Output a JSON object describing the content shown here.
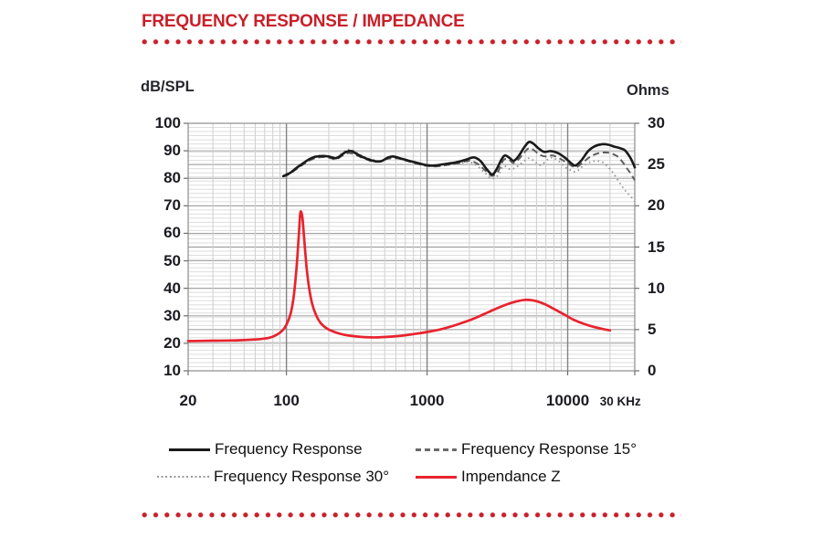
{
  "header": {
    "title": "FREQUENCY RESPONSE / IMPEDANCE"
  },
  "colors": {
    "accent_red": "#c9202a",
    "impedance_red": "#e8232e",
    "curve_black": "#1a1a1a",
    "grid_gray": "#8c8c8c"
  },
  "legend": {
    "items": [
      {
        "label": "Frequency Response",
        "style": "solid-black"
      },
      {
        "label": "Frequency Response 15°",
        "style": "dashed-gray"
      },
      {
        "label": "Frequency Response 30°",
        "style": "dotted-gray"
      },
      {
        "label": "Impendance Z",
        "style": "solid-red"
      }
    ]
  },
  "chart_data": {
    "type": "line",
    "title": "FREQUENCY RESPONSE / IMPEDANCE",
    "x_axis": {
      "scale": "log",
      "min": 20,
      "max": 30000,
      "tick_values": [
        20,
        100,
        1000,
        10000,
        30000
      ],
      "tick_labels": [
        "20",
        "100",
        "1000",
        "10000",
        "30 KHz"
      ]
    },
    "y_left": {
      "label": "dB/SPL",
      "min": 10,
      "max": 100,
      "ticks": [
        100,
        90,
        80,
        70,
        60,
        50,
        40,
        30,
        20,
        10
      ]
    },
    "y_right": {
      "label": "Ohms",
      "min": 0,
      "max": 30,
      "ticks": [
        30,
        25,
        20,
        15,
        10,
        5,
        0
      ]
    },
    "grid": {
      "h_minor_step_ohms": 0.5,
      "h_major_step_ohms": 5,
      "h_db_step": 10,
      "log_minors": true
    },
    "series": [
      {
        "name": "Frequency Response 30°",
        "axis": "left",
        "style": "dotted-gray",
        "points": [
          [
            95,
            80.9
          ],
          [
            105,
            82.0
          ],
          [
            118,
            83.9
          ],
          [
            130,
            85.5
          ],
          [
            145,
            87.1
          ],
          [
            160,
            88.0
          ],
          [
            180,
            88.3
          ],
          [
            200,
            88.1
          ],
          [
            225,
            87.6
          ],
          [
            250,
            89.3
          ],
          [
            270,
            90.4
          ],
          [
            300,
            90.1
          ],
          [
            340,
            88.3
          ],
          [
            400,
            87.0
          ],
          [
            470,
            86.4
          ],
          [
            540,
            87.8
          ],
          [
            620,
            87.4
          ],
          [
            780,
            86.0
          ],
          [
            950,
            84.9
          ],
          [
            1150,
            84.4
          ],
          [
            1400,
            84.9
          ],
          [
            1700,
            85.4
          ],
          [
            2000,
            85.9
          ],
          [
            2300,
            84.3
          ],
          [
            2600,
            81.8
          ],
          [
            2900,
            79.9
          ],
          [
            3200,
            81.2
          ],
          [
            3500,
            84.4
          ],
          [
            3900,
            83.3
          ],
          [
            4300,
            84.0
          ],
          [
            4800,
            85.9
          ],
          [
            5300,
            87.3
          ],
          [
            5800,
            86.2
          ],
          [
            6400,
            84.8
          ],
          [
            7200,
            86.8
          ],
          [
            7800,
            87.5
          ],
          [
            8600,
            86.3
          ],
          [
            9500,
            84.3
          ],
          [
            10500,
            82.9
          ],
          [
            11500,
            82.4
          ],
          [
            12800,
            84.4
          ],
          [
            14500,
            85.9
          ],
          [
            16000,
            86.3
          ],
          [
            17500,
            86.0
          ],
          [
            19000,
            84.6
          ],
          [
            21000,
            82.0
          ],
          [
            23000,
            79.0
          ],
          [
            25000,
            76.3
          ],
          [
            27000,
            74.3
          ],
          [
            30000,
            71.8
          ]
        ]
      },
      {
        "name": "Frequency Response 15°",
        "axis": "left",
        "style": "dashed-gray",
        "points": [
          [
            95,
            80.6
          ],
          [
            105,
            81.6
          ],
          [
            118,
            83.4
          ],
          [
            130,
            84.9
          ],
          [
            145,
            86.4
          ],
          [
            160,
            87.3
          ],
          [
            180,
            87.7
          ],
          [
            200,
            87.5
          ],
          [
            225,
            86.9
          ],
          [
            250,
            88.2
          ],
          [
            280,
            89.2
          ],
          [
            320,
            88.2
          ],
          [
            370,
            86.9
          ],
          [
            430,
            86.0
          ],
          [
            530,
            87.1
          ],
          [
            620,
            87.2
          ],
          [
            780,
            85.8
          ],
          [
            950,
            84.7
          ],
          [
            1150,
            84.3
          ],
          [
            1400,
            84.9
          ],
          [
            1700,
            85.6
          ],
          [
            2000,
            86.4
          ],
          [
            2300,
            85.2
          ],
          [
            2600,
            82.8
          ],
          [
            2900,
            80.9
          ],
          [
            3200,
            82.6
          ],
          [
            3500,
            86.6
          ],
          [
            3800,
            86.9
          ],
          [
            4100,
            85.6
          ],
          [
            4500,
            87.0
          ],
          [
            4900,
            89.3
          ],
          [
            5300,
            90.9
          ],
          [
            5800,
            90.1
          ],
          [
            6300,
            88.6
          ],
          [
            7000,
            87.9
          ],
          [
            7800,
            88.3
          ],
          [
            8700,
            87.3
          ],
          [
            9700,
            85.9
          ],
          [
            10800,
            84.4
          ],
          [
            11500,
            84.0
          ],
          [
            12800,
            85.7
          ],
          [
            14500,
            87.9
          ],
          [
            16500,
            89.1
          ],
          [
            18500,
            89.4
          ],
          [
            20500,
            89.0
          ],
          [
            22500,
            88.0
          ],
          [
            24500,
            86.0
          ],
          [
            26500,
            83.5
          ],
          [
            28000,
            81.8
          ],
          [
            30000,
            79.3
          ]
        ]
      },
      {
        "name": "Frequency Response",
        "axis": "left",
        "style": "solid-black",
        "points": [
          [
            95,
            80.8
          ],
          [
            100,
            81.3
          ],
          [
            108,
            82.2
          ],
          [
            118,
            83.8
          ],
          [
            130,
            85.3
          ],
          [
            145,
            86.9
          ],
          [
            160,
            87.8
          ],
          [
            180,
            88.1
          ],
          [
            200,
            87.9
          ],
          [
            225,
            87.3
          ],
          [
            245,
            88.4
          ],
          [
            265,
            89.6
          ],
          [
            290,
            89.9
          ],
          [
            320,
            88.7
          ],
          [
            360,
            87.4
          ],
          [
            420,
            86.3
          ],
          [
            470,
            86.2
          ],
          [
            530,
            87.6
          ],
          [
            580,
            87.9
          ],
          [
            650,
            87.2
          ],
          [
            780,
            86.1
          ],
          [
            950,
            85.0
          ],
          [
            1100,
            84.6
          ],
          [
            1300,
            85.1
          ],
          [
            1600,
            85.8
          ],
          [
            1900,
            86.8
          ],
          [
            2150,
            87.6
          ],
          [
            2400,
            86.3
          ],
          [
            2650,
            83.4
          ],
          [
            2900,
            81.4
          ],
          [
            3100,
            83.0
          ],
          [
            3400,
            87.0
          ],
          [
            3600,
            88.3
          ],
          [
            3900,
            87.2
          ],
          [
            4150,
            86.4
          ],
          [
            4500,
            88.2
          ],
          [
            4900,
            91.2
          ],
          [
            5300,
            93.2
          ],
          [
            5700,
            92.6
          ],
          [
            6200,
            90.9
          ],
          [
            6800,
            89.6
          ],
          [
            7600,
            89.9
          ],
          [
            8500,
            89.2
          ],
          [
            9500,
            87.6
          ],
          [
            10700,
            85.3
          ],
          [
            11400,
            84.7
          ],
          [
            12500,
            86.5
          ],
          [
            14000,
            89.9
          ],
          [
            15500,
            91.6
          ],
          [
            17500,
            92.4
          ],
          [
            19500,
            92.2
          ],
          [
            21500,
            91.5
          ],
          [
            23500,
            91.0
          ],
          [
            25500,
            90.2
          ],
          [
            27500,
            88.0
          ],
          [
            29000,
            85.8
          ],
          [
            30000,
            84.0
          ]
        ]
      },
      {
        "name": "Impendance Z",
        "axis": "right",
        "style": "solid-red",
        "points": [
          [
            20,
            3.6
          ],
          [
            30,
            3.65
          ],
          [
            45,
            3.7
          ],
          [
            60,
            3.8
          ],
          [
            75,
            4.0
          ],
          [
            85,
            4.35
          ],
          [
            95,
            5.0
          ],
          [
            102,
            5.9
          ],
          [
            108,
            7.2
          ],
          [
            113,
            9.2
          ],
          [
            118,
            12.5
          ],
          [
            122,
            16.0
          ],
          [
            125,
            18.8
          ],
          [
            127,
            19.3
          ],
          [
            130,
            18.5
          ],
          [
            134,
            15.8
          ],
          [
            139,
            12.6
          ],
          [
            145,
            10.0
          ],
          [
            152,
            8.2
          ],
          [
            162,
            6.8
          ],
          [
            175,
            5.8
          ],
          [
            195,
            5.1
          ],
          [
            220,
            4.7
          ],
          [
            260,
            4.35
          ],
          [
            320,
            4.15
          ],
          [
            400,
            4.05
          ],
          [
            500,
            4.1
          ],
          [
            650,
            4.25
          ],
          [
            800,
            4.45
          ],
          [
            1000,
            4.7
          ],
          [
            1300,
            5.1
          ],
          [
            1700,
            5.7
          ],
          [
            2200,
            6.4
          ],
          [
            2800,
            7.2
          ],
          [
            3500,
            7.9
          ],
          [
            4300,
            8.4
          ],
          [
            5000,
            8.6
          ],
          [
            5800,
            8.5
          ],
          [
            6800,
            8.1
          ],
          [
            8000,
            7.5
          ],
          [
            9500,
            6.8
          ],
          [
            11000,
            6.2
          ],
          [
            13000,
            5.7
          ],
          [
            15500,
            5.3
          ],
          [
            18000,
            5.05
          ],
          [
            20000,
            4.9
          ]
        ]
      }
    ]
  }
}
